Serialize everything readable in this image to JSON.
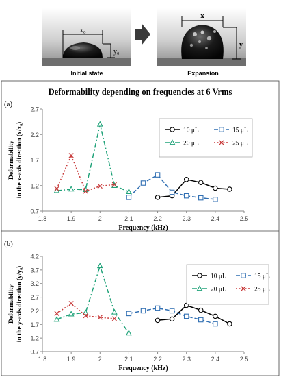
{
  "figure": {
    "title": "Deformability depending on frequencies at 6 Vrms",
    "images": [
      {
        "caption": "Initial state",
        "dim_x": "x₀",
        "dim_y": "y₀"
      },
      {
        "caption": "Expansion",
        "dim_x": "x",
        "dim_y": "y"
      }
    ]
  },
  "chart_data": [
    {
      "type": "line",
      "panel_label": "(a)",
      "xlabel": "Frequency (kHz)",
      "ylabel_line1": "Deformability",
      "ylabel_line2": "in the x-axis direction (x/x₀)",
      "xlim": [
        1.8,
        2.5
      ],
      "ylim": [
        0.7,
        2.7
      ],
      "x_ticks": [
        "1.8",
        "1.9",
        "2",
        "2.1",
        "2.2",
        "2.3",
        "2.4",
        "2.5"
      ],
      "y_ticks": [
        "0.7",
        "1.2",
        "1.7",
        "2.2",
        "2.7"
      ],
      "legend_position": "right",
      "series": [
        {
          "name": "10 μL",
          "color": "#000000",
          "marker": "circle",
          "dash": "none",
          "x": [
            2.2,
            2.25,
            2.3,
            2.35,
            2.4,
            2.45
          ],
          "y": [
            0.97,
            1.0,
            1.32,
            1.26,
            1.15,
            1.13
          ]
        },
        {
          "name": "15 μL",
          "color": "#2f6eb2",
          "marker": "square",
          "dash": "dash",
          "x": [
            2.1,
            2.15,
            2.2,
            2.25,
            2.3,
            2.35,
            2.4
          ],
          "y": [
            0.97,
            1.25,
            1.41,
            1.07,
            1.0,
            0.96,
            0.93
          ]
        },
        {
          "name": "20 μL",
          "color": "#21a37a",
          "marker": "triangle",
          "dash": "dashdot",
          "x": [
            1.85,
            1.9,
            1.95,
            2.0,
            2.05,
            2.1
          ],
          "y": [
            1.1,
            1.13,
            1.12,
            2.4,
            1.2,
            1.08
          ]
        },
        {
          "name": "25 μL",
          "color": "#c83a3a",
          "marker": "x",
          "dash": "dot",
          "x": [
            1.85,
            1.9,
            1.95,
            2.0,
            2.05
          ],
          "y": [
            1.14,
            1.79,
            1.09,
            1.19,
            1.22
          ]
        }
      ]
    },
    {
      "type": "line",
      "panel_label": "(b)",
      "xlabel": "Frequency (kHz)",
      "ylabel_line1": "Deformability",
      "ylabel_line2": "in the y-axis direction (y/y₀)",
      "xlim": [
        1.8,
        2.5
      ],
      "ylim": [
        0.7,
        4.2
      ],
      "x_ticks": [
        "1.8",
        "1.9",
        "2",
        "2.1",
        "2.2",
        "2.3",
        "2.4",
        "2.5"
      ],
      "y_ticks": [
        "0.7",
        "1.2",
        "1.7",
        "2.2",
        "2.7",
        "3.2",
        "3.7",
        "4.2"
      ],
      "legend_position": "right",
      "series": [
        {
          "name": "10 μL",
          "color": "#000000",
          "marker": "circle",
          "dash": "none",
          "x": [
            2.2,
            2.25,
            2.3,
            2.35,
            2.4,
            2.45
          ],
          "y": [
            1.85,
            1.9,
            2.4,
            2.22,
            2.0,
            1.72
          ]
        },
        {
          "name": "15 μL",
          "color": "#2f6eb2",
          "marker": "square",
          "dash": "dash",
          "x": [
            2.1,
            2.15,
            2.2,
            2.25,
            2.3,
            2.35,
            2.4
          ],
          "y": [
            2.1,
            2.2,
            2.3,
            2.2,
            2.0,
            1.87,
            1.72
          ]
        },
        {
          "name": "20 μL",
          "color": "#21a37a",
          "marker": "triangle",
          "dash": "dashdot",
          "x": [
            1.85,
            1.9,
            1.95,
            2.0,
            2.05,
            2.1
          ],
          "y": [
            1.88,
            2.08,
            2.13,
            3.85,
            2.15,
            1.38
          ]
        },
        {
          "name": "25 μL",
          "color": "#c83a3a",
          "marker": "x",
          "dash": "dot",
          "x": [
            1.85,
            1.9,
            1.95,
            2.0,
            2.05
          ],
          "y": [
            2.1,
            2.47,
            2.02,
            1.96,
            1.91
          ]
        }
      ]
    }
  ]
}
